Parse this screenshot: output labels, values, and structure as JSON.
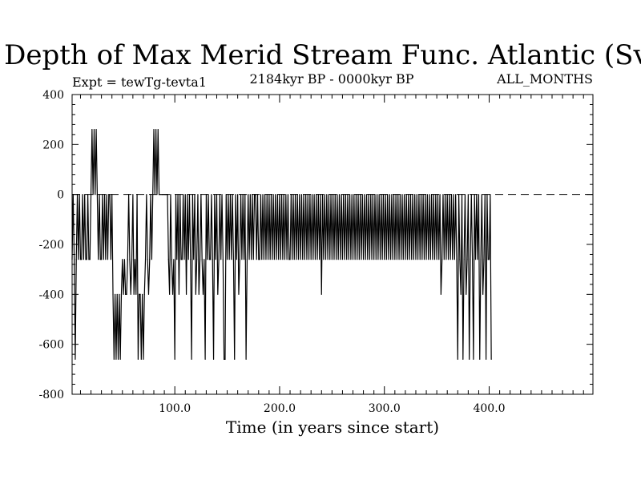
{
  "chart_data": {
    "type": "line",
    "title": "Depth of Max Merid Stream Func. Atlantic (Sv)",
    "subtitle_left": "Expt = tewTg-tevta1",
    "subtitle_center": "2184kyr BP - 0000kyr BP",
    "subtitle_right": "ALL_MONTHS",
    "xlabel": "Time (in years since start)",
    "ylabel": "",
    "xlim": [
      2,
      499
    ],
    "ylim": [
      -800,
      400
    ],
    "x_ticks": [
      100,
      200,
      300,
      400
    ],
    "x_tick_labels": [
      "100.0",
      "200.0",
      "300.0",
      "400.0"
    ],
    "y_ticks": [
      -800,
      -600,
      -400,
      -200,
      0,
      200,
      400
    ],
    "y_tick_labels": [
      "-800",
      "-600",
      "-400",
      "-200",
      "0",
      "200",
      "400"
    ],
    "zero_line": 0,
    "series": [
      {
        "name": "Depth of Max Merid Stream Func.",
        "x_start": 2,
        "x_step": 1,
        "values": [
          -260,
          0,
          -260,
          -660,
          -260,
          0,
          -260,
          0,
          -260,
          -260,
          0,
          -260,
          0,
          -260,
          -260,
          0,
          -260,
          -260,
          0,
          260,
          0,
          260,
          0,
          260,
          0,
          -260,
          0,
          -260,
          -260,
          0,
          -260,
          0,
          -260,
          0,
          -260,
          0,
          0,
          -260,
          0,
          -400,
          -660,
          -400,
          -660,
          -400,
          -660,
          -400,
          -660,
          -400,
          -260,
          -400,
          -260,
          -400,
          -400,
          -260,
          0,
          -260,
          -400,
          -260,
          0,
          -400,
          -260,
          -400,
          0,
          -660,
          -400,
          -400,
          -660,
          -400,
          -660,
          -400,
          -260,
          0,
          -260,
          -400,
          -260,
          0,
          -260,
          0,
          260,
          0,
          260,
          0,
          260,
          0,
          0,
          0,
          0,
          0,
          0,
          0,
          0,
          0,
          -260,
          -400,
          0,
          -260,
          -400,
          -260,
          -660,
          0,
          -260,
          0,
          -400,
          0,
          -260,
          -260,
          0,
          -260,
          0,
          -400,
          0,
          -260,
          0,
          -260,
          -660,
          0,
          -260,
          0,
          -400,
          -260,
          0,
          -400,
          -260,
          0,
          -260,
          -400,
          -260,
          -660,
          0,
          -260,
          0,
          -260,
          -260,
          0,
          -260,
          -660,
          0,
          -260,
          0,
          -400,
          -260,
          0,
          -260,
          0,
          -260,
          -660,
          -660,
          0,
          -260,
          0,
          -260,
          0,
          -260,
          0,
          -260,
          -660,
          0,
          -260,
          0,
          -400,
          -260,
          0,
          -260,
          0,
          -260,
          0,
          -660,
          -260,
          0,
          -260,
          0,
          -260,
          0,
          -260,
          0,
          0,
          -260,
          0,
          -260,
          -260,
          0,
          -260,
          0,
          -260,
          0,
          -260,
          0,
          -260,
          0,
          -260,
          0,
          -260,
          0,
          -260,
          0,
          -260,
          0,
          -260,
          0,
          -260,
          0,
          -260,
          0,
          -260,
          0,
          -260,
          0,
          -260,
          -260,
          0,
          -260,
          0,
          -260,
          0,
          -260,
          0,
          -260,
          0,
          -260,
          0,
          -260,
          0,
          -260,
          0,
          -260,
          0,
          -260,
          0,
          -260,
          0,
          -260,
          0,
          -260,
          0,
          -260,
          0,
          -260,
          0,
          -400,
          0,
          -260,
          0,
          -260,
          0,
          -260,
          0,
          -260,
          0,
          -260,
          0,
          -260,
          0,
          -260,
          0,
          -260,
          0,
          -260,
          0,
          -260,
          0,
          -260,
          0,
          -260,
          0,
          -260,
          0,
          -260,
          0,
          -260,
          0,
          -260,
          0,
          -260,
          0,
          -260,
          0,
          -260,
          0,
          -260,
          0,
          -260,
          0,
          -260,
          0,
          -260,
          0,
          -260,
          0,
          -260,
          0,
          -260,
          0,
          -260,
          0,
          -260,
          0,
          -260,
          0,
          -260,
          0,
          -260,
          0,
          -260,
          0,
          -260,
          0,
          -260,
          0,
          -260,
          0,
          -260,
          0,
          -260,
          0,
          -260,
          0,
          -260,
          0,
          -260,
          0,
          -260,
          0,
          -260,
          0,
          -260,
          0,
          -260,
          0,
          -260,
          0,
          -260,
          0,
          -260,
          0,
          -260,
          0,
          -260,
          0,
          -260,
          0,
          -260,
          0,
          -260,
          0,
          -260,
          0,
          -260,
          0,
          -260,
          0,
          -260,
          0,
          -400,
          -260,
          0,
          -260,
          0,
          -260,
          0,
          -260,
          0,
          -260,
          0,
          -260,
          0,
          -260,
          0,
          -260,
          -660,
          0,
          -260,
          -400,
          0,
          -660,
          -260,
          0,
          -400,
          -260,
          0,
          -660,
          -260,
          0,
          -260,
          -660,
          0,
          -260,
          0,
          -260,
          0,
          -660,
          -260,
          0,
          -400,
          -260,
          0,
          -660,
          0,
          -260,
          -260,
          0,
          -660
        ]
      }
    ]
  }
}
